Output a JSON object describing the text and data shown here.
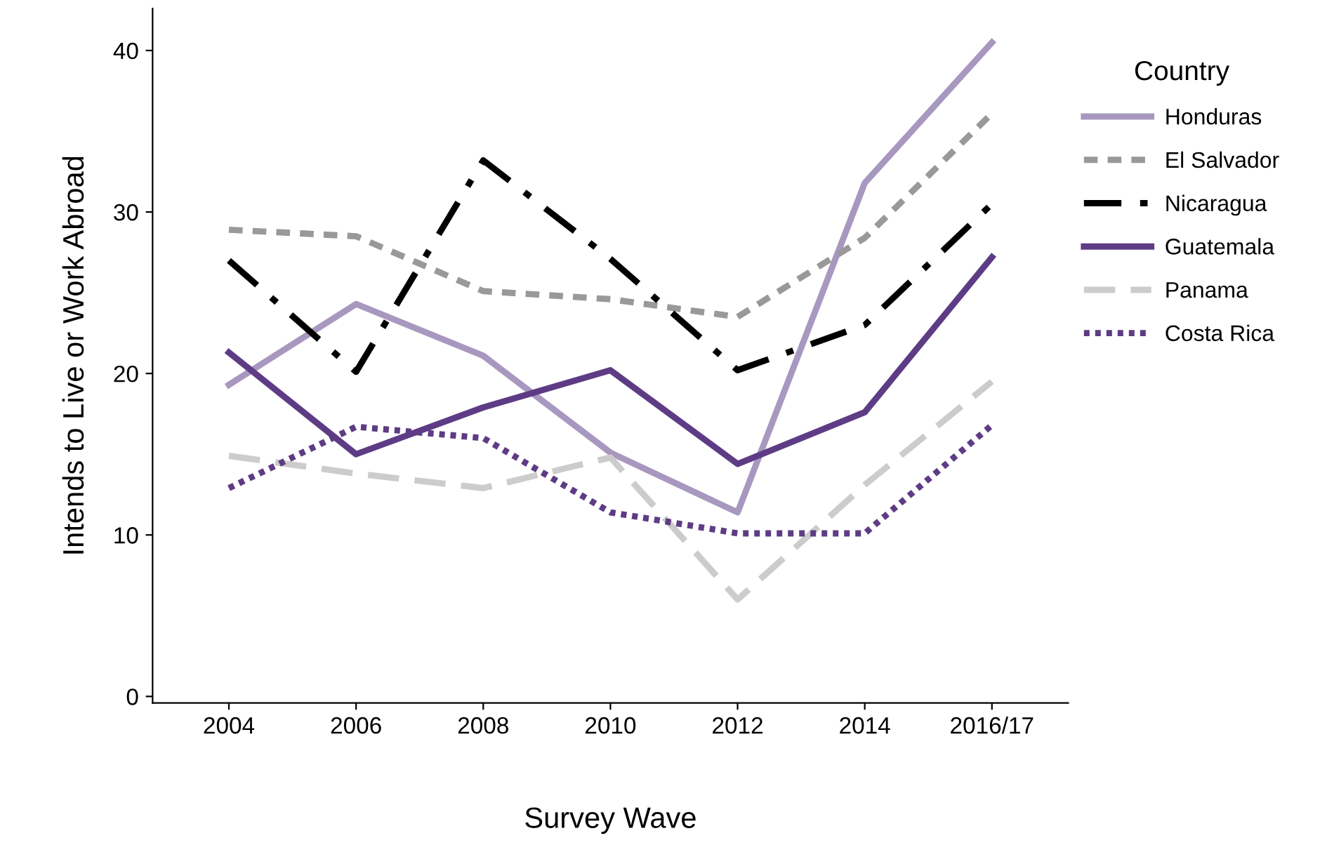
{
  "chart_data": {
    "type": "line",
    "xlabel": "Survey Wave",
    "ylabel": "Intends to Live or Work Abroad",
    "legend_title": "Country",
    "legend": "right",
    "grid": false,
    "marker": "none",
    "categories": [
      "2004",
      "2006",
      "2008",
      "2010",
      "2012",
      "2014",
      "2016/17"
    ],
    "ylim": [
      -0.4,
      42.6
    ],
    "yticks": [
      0,
      10,
      20,
      30,
      40
    ],
    "series": [
      {
        "name": "Honduras",
        "color": "#a898c0",
        "line_style": "solid",
        "values": [
          19.3,
          24.3,
          21.1,
          15.1,
          11.4,
          31.8,
          40.5
        ]
      },
      {
        "name": "El Salvador",
        "color": "#999999",
        "line_style": "dashed",
        "values": [
          28.9,
          28.5,
          25.1,
          24.6,
          23.5,
          28.4,
          36.1
        ]
      },
      {
        "name": "Nicaragua",
        "color": "#000000",
        "line_style": "dashed",
        "values": [
          27.0,
          20.1,
          33.2,
          27.1,
          20.2,
          23.0,
          30.5
        ]
      },
      {
        "name": "Guatemala",
        "color": "#5e3c85",
        "line_style": "solid",
        "values": [
          21.3,
          15.0,
          17.9,
          20.2,
          14.4,
          17.6,
          27.2
        ]
      },
      {
        "name": "Panama",
        "color": "#cccccc",
        "line_style": "dashed",
        "values": [
          14.9,
          13.8,
          12.9,
          14.8,
          6.0,
          13.1,
          19.5
        ]
      },
      {
        "name": "Costa Rica",
        "color": "#5e3c85",
        "line_style": "dotted",
        "values": [
          12.9,
          16.7,
          16.0,
          11.4,
          10.1,
          10.1,
          16.8
        ]
      }
    ]
  }
}
